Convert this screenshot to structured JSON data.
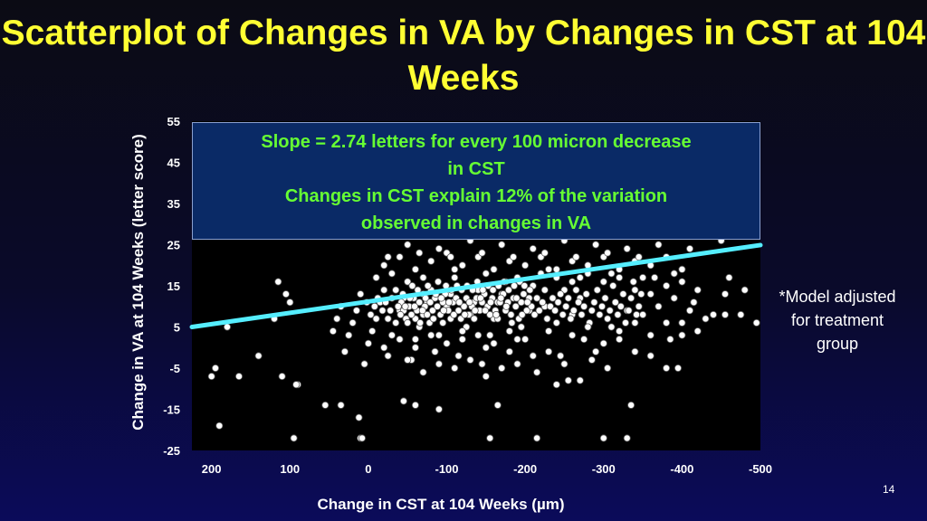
{
  "slide": {
    "title": "Scatterplot of Changes in VA by Changes in CST at 104 Weeks",
    "side_note": "*Model adjusted for treatment group",
    "page_number": "14"
  },
  "colors": {
    "title": "#ffff33",
    "annotation_text": "#66ff33",
    "annotation_bg": "#0a2a66",
    "regression_line": "#55eeff",
    "points": "#ffffff",
    "plot_bg": "#000000"
  },
  "chart_data": {
    "type": "scatter",
    "title": "Scatterplot of Changes in VA by Changes in CST at 104 Weeks",
    "xlabel": "Change in CST at 104 Weeks (µm)",
    "ylabel": "Change in VA at 104 Weeks (letter score)",
    "x_reversed": true,
    "xlim": [
      225,
      -500
    ],
    "ylim": [
      -25,
      55
    ],
    "x_ticks": [
      "200",
      "100",
      "0",
      "-100",
      "-200",
      "-300",
      "-400",
      "-500"
    ],
    "x_tick_values": [
      200,
      100,
      0,
      -100,
      -200,
      -300,
      -400,
      -500
    ],
    "y_ticks": [
      "55",
      "45",
      "35",
      "25",
      "15",
      "5",
      "-5",
      "-15",
      "-25"
    ],
    "y_tick_values": [
      55,
      45,
      35,
      25,
      15,
      5,
      -5,
      -15,
      -25
    ],
    "grid": false,
    "annotation": [
      "Slope = 2.74 letters for every 100 micron decrease",
      "in CST",
      "Changes in CST explain 12% of the variation",
      "observed in changes in VA"
    ],
    "regression": {
      "slope_per_100um_decrease": 2.74,
      "r_squared": 0.12,
      "x": [
        225,
        -500
      ],
      "y": [
        5.0,
        24.9
      ]
    },
    "points": [
      [
        180,
        5
      ],
      [
        195,
        -5
      ],
      [
        200,
        -7
      ],
      [
        190,
        -19
      ],
      [
        165,
        -7
      ],
      [
        110,
        -7
      ],
      [
        90,
        -9
      ],
      [
        92,
        -9
      ],
      [
        95,
        -22
      ],
      [
        100,
        11
      ],
      [
        115,
        16
      ],
      [
        105,
        13
      ],
      [
        120,
        7
      ],
      [
        140,
        -2
      ],
      [
        55,
        -14
      ],
      [
        35,
        -14
      ],
      [
        12,
        -17
      ],
      [
        10,
        -22
      ],
      [
        8,
        -22
      ],
      [
        -45,
        -13
      ],
      [
        -60,
        -14
      ],
      [
        -90,
        -15
      ],
      [
        -165,
        -14
      ],
      [
        -240,
        -9
      ],
      [
        -255,
        -8
      ],
      [
        -215,
        -6
      ],
      [
        -155,
        -22
      ],
      [
        -215,
        -22
      ],
      [
        -300,
        -22
      ],
      [
        -330,
        -22
      ],
      [
        -335,
        -14
      ],
      [
        -270,
        -8
      ],
      [
        -285,
        -3
      ],
      [
        -245,
        -2
      ],
      [
        -340,
        -1
      ],
      [
        -380,
        -5
      ],
      [
        -395,
        -5
      ],
      [
        -360,
        -2
      ],
      [
        -385,
        2
      ],
      [
        -420,
        4
      ],
      [
        -440,
        8
      ],
      [
        -455,
        8
      ],
      [
        -475,
        8
      ],
      [
        -495,
        6
      ],
      [
        -480,
        14
      ],
      [
        -460,
        17
      ],
      [
        -455,
        13
      ],
      [
        -420,
        14
      ],
      [
        -415,
        11
      ],
      [
        -400,
        6
      ],
      [
        -365,
        17
      ],
      [
        -340,
        14
      ],
      [
        -330,
        9
      ],
      [
        -310,
        5
      ],
      [
        -320,
        2
      ],
      [
        -305,
        -5
      ],
      [
        -290,
        -1
      ],
      [
        -275,
        2
      ],
      [
        -270,
        12
      ],
      [
        -260,
        8
      ],
      [
        -250,
        14
      ],
      [
        -240,
        6
      ],
      [
        -230,
        4
      ],
      [
        -225,
        10
      ],
      [
        -220,
        18
      ],
      [
        -210,
        15
      ],
      [
        -205,
        9
      ],
      [
        -195,
        5
      ],
      [
        -190,
        2
      ],
      [
        -180,
        -1
      ],
      [
        -175,
        16
      ],
      [
        -170,
        13
      ],
      [
        -165,
        11
      ],
      [
        -160,
        7
      ],
      [
        -155,
        3
      ],
      [
        -150,
        0
      ],
      [
        -145,
        -4
      ],
      [
        -140,
        14
      ],
      [
        -135,
        11
      ],
      [
        -130,
        8
      ],
      [
        -125,
        5
      ],
      [
        -120,
        2
      ],
      [
        -115,
        -2
      ],
      [
        -110,
        17
      ],
      [
        -105,
        13
      ],
      [
        -100,
        10
      ],
      [
        -95,
        6
      ],
      [
        -90,
        3
      ],
      [
        -85,
        -1
      ],
      [
        -80,
        14
      ],
      [
        -75,
        11
      ],
      [
        -70,
        8
      ],
      [
        -65,
        5
      ],
      [
        -60,
        2
      ],
      [
        -55,
        -3
      ],
      [
        -50,
        16
      ],
      [
        -45,
        12
      ],
      [
        -40,
        9
      ],
      [
        -35,
        6
      ],
      [
        -30,
        3
      ],
      [
        -25,
        -2
      ],
      [
        -20,
        14
      ],
      [
        -15,
        11
      ],
      [
        -10,
        7
      ],
      [
        -5,
        4
      ],
      [
        0,
        1
      ],
      [
        5,
        -4
      ],
      [
        10,
        13
      ],
      [
        15,
        9
      ],
      [
        20,
        6
      ],
      [
        25,
        3
      ],
      [
        30,
        -1
      ],
      [
        35,
        10
      ],
      [
        40,
        7
      ],
      [
        45,
        4
      ],
      [
        -60,
        7
      ],
      [
        -62,
        9
      ],
      [
        -65,
        11
      ],
      [
        -58,
        12
      ],
      [
        -55,
        8
      ],
      [
        -52,
        10
      ],
      [
        -48,
        7
      ],
      [
        -45,
        9
      ],
      [
        -42,
        11
      ],
      [
        -70,
        13
      ],
      [
        -72,
        10
      ],
      [
        -75,
        8
      ],
      [
        -78,
        6
      ],
      [
        -82,
        9
      ],
      [
        -85,
        12
      ],
      [
        -88,
        10
      ],
      [
        -92,
        8
      ],
      [
        -95,
        11
      ],
      [
        -98,
        13
      ],
      [
        -102,
        9
      ],
      [
        -105,
        7
      ],
      [
        -108,
        11
      ],
      [
        -112,
        12
      ],
      [
        -115,
        9
      ],
      [
        -118,
        7
      ],
      [
        -122,
        10
      ],
      [
        -125,
        12
      ],
      [
        -128,
        8
      ],
      [
        -132,
        10
      ],
      [
        -135,
        7
      ],
      [
        -138,
        12
      ],
      [
        -142,
        9
      ],
      [
        -145,
        11
      ],
      [
        -148,
        13
      ],
      [
        -152,
        10
      ],
      [
        -155,
        8
      ],
      [
        -158,
        12
      ],
      [
        -162,
        9
      ],
      [
        -165,
        7
      ],
      [
        -168,
        11
      ],
      [
        -172,
        13
      ],
      [
        -175,
        9
      ],
      [
        -178,
        11
      ],
      [
        -182,
        8
      ],
      [
        -185,
        12
      ],
      [
        -188,
        10
      ],
      [
        -192,
        7
      ],
      [
        -195,
        11
      ],
      [
        -198,
        13
      ],
      [
        -202,
        9
      ],
      [
        -205,
        12
      ],
      [
        -208,
        10
      ],
      [
        -212,
        8
      ],
      [
        -215,
        12
      ],
      [
        -218,
        9
      ],
      [
        -222,
        11
      ],
      [
        -225,
        14
      ],
      [
        -228,
        7
      ],
      [
        -232,
        10
      ],
      [
        -235,
        12
      ],
      [
        -238,
        9
      ],
      [
        -242,
        11
      ],
      [
        -245,
        13
      ],
      [
        -248,
        8
      ],
      [
        -252,
        10
      ],
      [
        -255,
        12
      ],
      [
        -258,
        7
      ],
      [
        -262,
        9
      ],
      [
        -265,
        14
      ],
      [
        -268,
        11
      ],
      [
        -272,
        8
      ],
      [
        -275,
        10
      ],
      [
        -278,
        13
      ],
      [
        -282,
        6
      ],
      [
        -285,
        9
      ],
      [
        -288,
        11
      ],
      [
        -292,
        14
      ],
      [
        -295,
        8
      ],
      [
        -298,
        10
      ],
      [
        -302,
        12
      ],
      [
        -305,
        7
      ],
      [
        -308,
        9
      ],
      [
        -312,
        15
      ],
      [
        -315,
        11
      ],
      [
        -318,
        8
      ],
      [
        -322,
        10
      ],
      [
        -325,
        13
      ],
      [
        -328,
        6
      ],
      [
        -332,
        9
      ],
      [
        -335,
        12
      ],
      [
        -338,
        16
      ],
      [
        -342,
        8
      ],
      [
        -345,
        10
      ],
      [
        -348,
        13
      ],
      [
        -30,
        12
      ],
      [
        -28,
        9
      ],
      [
        -25,
        7
      ],
      [
        -22,
        11
      ],
      [
        -18,
        9
      ],
      [
        -12,
        12
      ],
      [
        -8,
        10
      ],
      [
        -3,
        8
      ],
      [
        2,
        11
      ],
      [
        -35,
        14
      ],
      [
        -38,
        10
      ],
      [
        -41,
        8
      ],
      [
        -44,
        13
      ],
      [
        -47,
        10
      ],
      [
        -50,
        6
      ],
      [
        -53,
        12
      ],
      [
        -56,
        15
      ],
      [
        -59,
        10
      ],
      [
        -63,
        14
      ],
      [
        -66,
        6
      ],
      [
        -69,
        9
      ],
      [
        -73,
        12
      ],
      [
        -76,
        15
      ],
      [
        -79,
        11
      ],
      [
        -83,
        7
      ],
      [
        -86,
        13
      ],
      [
        -89,
        16
      ],
      [
        -93,
        12
      ],
      [
        -96,
        9
      ],
      [
        -99,
        15
      ],
      [
        -103,
        11
      ],
      [
        -106,
        14
      ],
      [
        -109,
        8
      ],
      [
        -113,
        15
      ],
      [
        -116,
        11
      ],
      [
        -119,
        14
      ],
      [
        -123,
        8
      ],
      [
        -126,
        15
      ],
      [
        -129,
        11
      ],
      [
        -133,
        14
      ],
      [
        -136,
        9
      ],
      [
        -139,
        16
      ],
      [
        -143,
        12
      ],
      [
        -146,
        14
      ],
      [
        -149,
        9
      ],
      [
        -153,
        15
      ],
      [
        -156,
        11
      ],
      [
        -159,
        14
      ],
      [
        -163,
        8
      ],
      [
        -166,
        15
      ],
      [
        -169,
        12
      ],
      [
        -173,
        16
      ],
      [
        -176,
        10
      ],
      [
        -179,
        14
      ],
      [
        -183,
        6
      ],
      [
        -186,
        15
      ],
      [
        -189,
        12
      ],
      [
        -193,
        16
      ],
      [
        -196,
        8
      ],
      [
        -199,
        15
      ],
      [
        -203,
        11
      ],
      [
        -206,
        14
      ],
      [
        -20,
        20
      ],
      [
        -40,
        22
      ],
      [
        -60,
        19
      ],
      [
        -80,
        21
      ],
      [
        -100,
        23
      ],
      [
        -120,
        20
      ],
      [
        -140,
        22
      ],
      [
        -160,
        19
      ],
      [
        -180,
        21
      ],
      [
        -200,
        20
      ],
      [
        -220,
        22
      ],
      [
        -240,
        19
      ],
      [
        -260,
        21
      ],
      [
        -280,
        20
      ],
      [
        -300,
        22
      ],
      [
        -320,
        19
      ],
      [
        -340,
        21
      ],
      [
        -360,
        20
      ],
      [
        -380,
        22
      ],
      [
        -400,
        19
      ],
      [
        -30,
        18
      ],
      [
        -70,
        17
      ],
      [
        -110,
        19
      ],
      [
        -150,
        18
      ],
      [
        -190,
        17
      ],
      [
        -230,
        19
      ],
      [
        -270,
        17
      ],
      [
        -310,
        18
      ],
      [
        -350,
        17
      ],
      [
        -390,
        18
      ],
      [
        -10,
        17
      ],
      [
        -50,
        25
      ],
      [
        -90,
        24
      ],
      [
        -130,
        26
      ],
      [
        -170,
        25
      ],
      [
        -210,
        24
      ],
      [
        -250,
        26
      ],
      [
        -290,
        25
      ],
      [
        -330,
        24
      ],
      [
        -370,
        25
      ],
      [
        -410,
        24
      ],
      [
        -450,
        26
      ],
      [
        -25,
        22
      ],
      [
        -65,
        23
      ],
      [
        -105,
        22
      ],
      [
        -145,
        23
      ],
      [
        -185,
        22
      ],
      [
        -225,
        23
      ],
      [
        -265,
        22
      ],
      [
        -305,
        23
      ],
      [
        -345,
        22
      ],
      [
        -120,
        4
      ],
      [
        -140,
        3
      ],
      [
        -160,
        1
      ],
      [
        -180,
        4
      ],
      [
        -200,
        2
      ],
      [
        -100,
        1
      ],
      [
        -80,
        3
      ],
      [
        -60,
        0
      ],
      [
        -40,
        2
      ],
      [
        -20,
        0
      ],
      [
        -130,
        -3
      ],
      [
        -170,
        -5
      ],
      [
        -210,
        -2
      ],
      [
        -90,
        -4
      ],
      [
        -70,
        -6
      ],
      [
        -50,
        -3
      ],
      [
        -110,
        -5
      ],
      [
        -150,
        -7
      ],
      [
        -190,
        -4
      ],
      [
        -230,
        -1
      ],
      [
        -250,
        -4
      ],
      [
        -260,
        3
      ],
      [
        -280,
        5
      ],
      [
        -300,
        1
      ],
      [
        -320,
        4
      ],
      [
        -340,
        6
      ],
      [
        -360,
        3
      ],
      [
        -380,
        6
      ],
      [
        -400,
        3
      ],
      [
        -350,
        8
      ],
      [
        -370,
        10
      ],
      [
        -390,
        12
      ],
      [
        -410,
        9
      ],
      [
        -430,
        7
      ],
      [
        -300,
        16
      ],
      [
        -320,
        17
      ],
      [
        -280,
        18
      ],
      [
        -260,
        16
      ],
      [
        -240,
        17
      ],
      [
        -360,
        13
      ],
      [
        -380,
        15
      ],
      [
        -400,
        16
      ]
    ]
  }
}
